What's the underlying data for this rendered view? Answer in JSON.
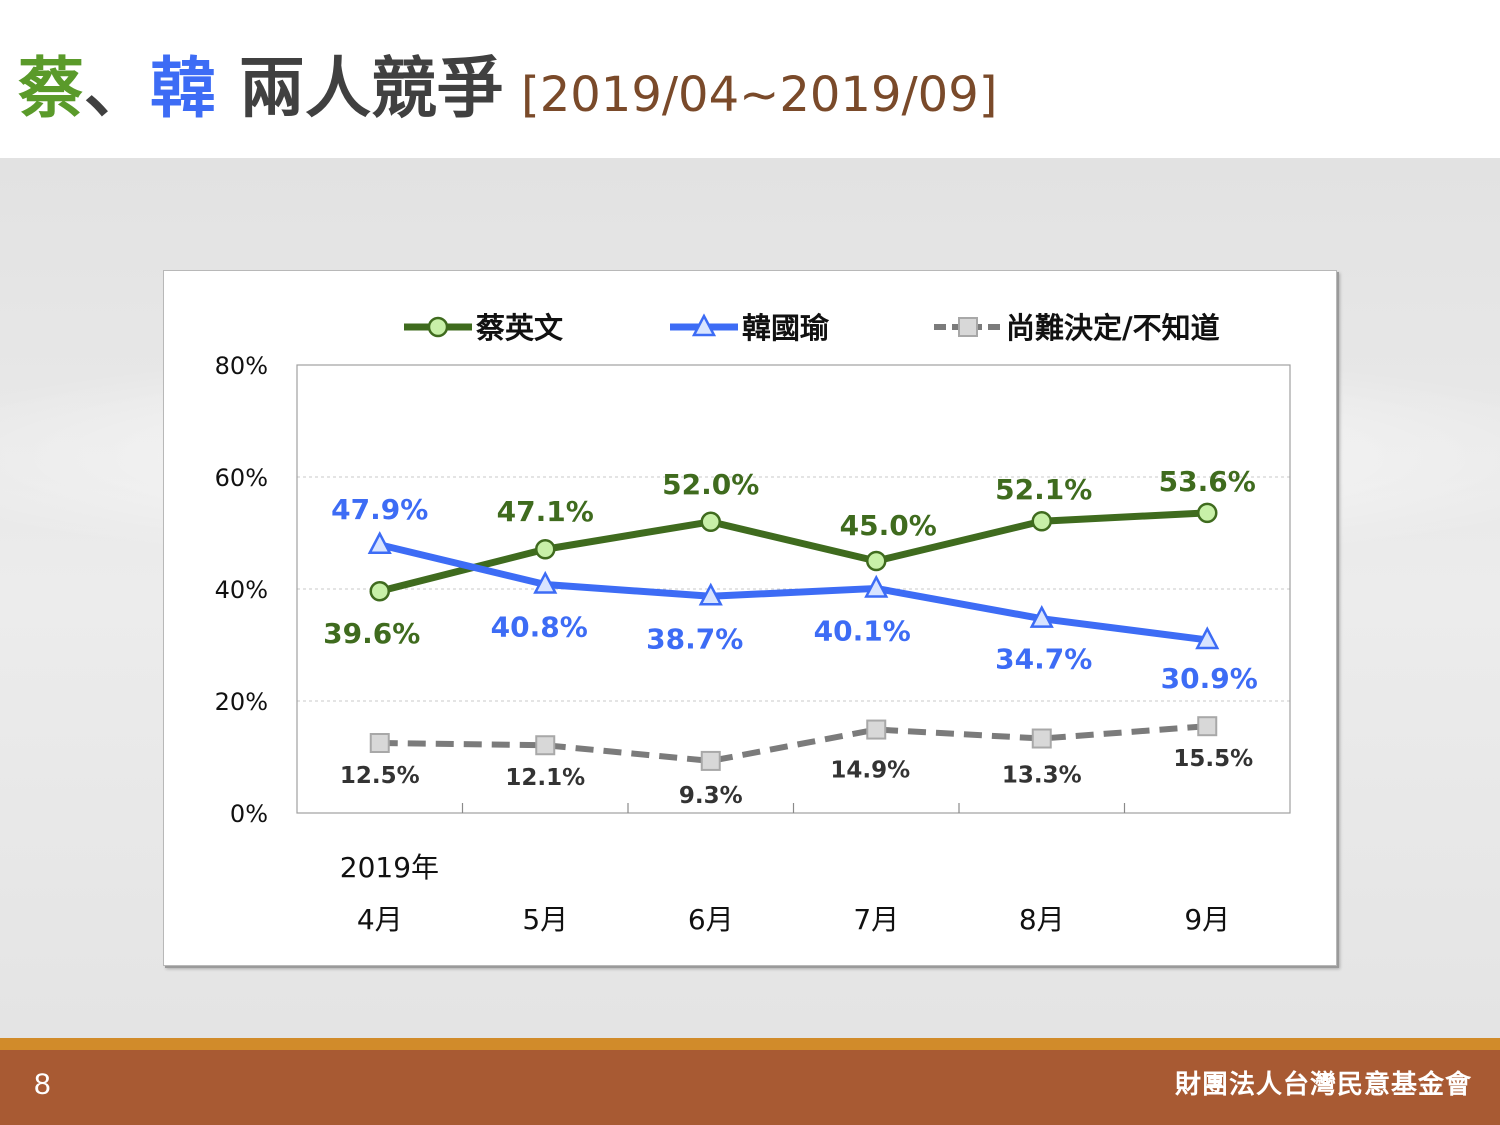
{
  "title": {
    "name1": "蔡",
    "sep": "、",
    "name2": "韓",
    "rest": " 兩人競爭",
    "period": "[2019/04~2019/09]"
  },
  "colors": {
    "green": "#3f6b1e",
    "blue": "#3d6cf5",
    "gray": "#7b7b7b",
    "brown_text": "#7a4a2a",
    "title_green": "#5a9a2a",
    "title_blue": "#3d6cf5",
    "title_dark": "#404040",
    "footer": "#a85a33",
    "gold": "#d18b2a"
  },
  "footer": {
    "page_number": "8",
    "organization": "財團法人台灣民意基金會"
  },
  "chart_data": {
    "type": "line",
    "year_label": "2019年",
    "categories": [
      "4月",
      "5月",
      "6月",
      "7月",
      "8月",
      "9月"
    ],
    "ylim": [
      0,
      80
    ],
    "yticks": [
      "0%",
      "20%",
      "40%",
      "60%",
      "80%"
    ],
    "grid": true,
    "legend_position": "top",
    "series": [
      {
        "name": "蔡英文",
        "color": "#3f6b1e",
        "marker": "circle",
        "values": [
          39.6,
          47.1,
          52.0,
          45.0,
          52.1,
          53.6
        ],
        "labels": [
          "39.6%",
          "47.1%",
          "52.0%",
          "45.0%",
          "52.1%",
          "53.6%"
        ]
      },
      {
        "name": "韓國瑜",
        "color": "#3d6cf5",
        "marker": "triangle",
        "values": [
          47.9,
          40.8,
          38.7,
          40.1,
          34.7,
          30.9
        ],
        "labels": [
          "47.9%",
          "40.8%",
          "38.7%",
          "40.1%",
          "34.7%",
          "30.9%"
        ]
      },
      {
        "name": "尚難決定/不知道",
        "color": "#7b7b7b",
        "marker": "square",
        "dashed": true,
        "values": [
          12.5,
          12.1,
          9.3,
          14.9,
          13.3,
          15.5
        ],
        "labels": [
          "12.5%",
          "12.1%",
          "9.3%",
          "14.9%",
          "13.3%",
          "15.5%"
        ]
      }
    ]
  }
}
